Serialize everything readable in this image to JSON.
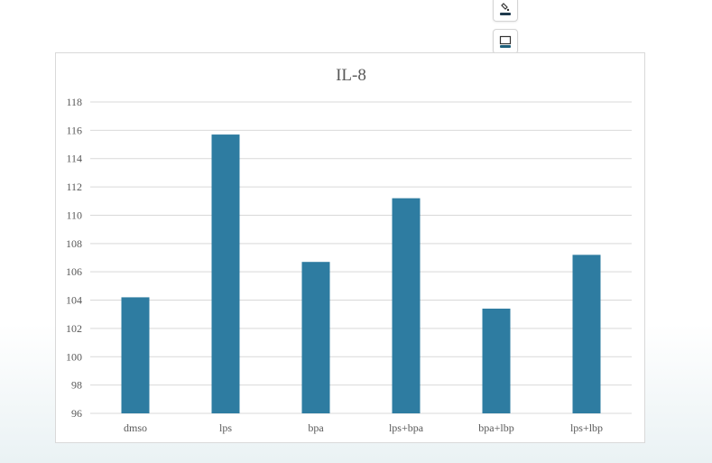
{
  "toolbar": {
    "buttons": [
      {
        "name": "chart-styles-button",
        "icon": "paintbrush-icon"
      },
      {
        "name": "chart-layout-button",
        "icon": "layout-icon"
      },
      {
        "name": "chart-elements-button",
        "icon": "magic-wand-icon"
      },
      {
        "name": "more-options-button",
        "icon": "ellipsis-icon",
        "label": "···"
      }
    ]
  },
  "chart_data": {
    "type": "bar",
    "title": "IL-8",
    "xlabel": "",
    "ylabel": "",
    "categories": [
      "dmso",
      "lps",
      "bpa",
      "lps+bpa",
      "bpa+lbp",
      "lps+lbp"
    ],
    "values": [
      104.2,
      115.7,
      106.7,
      111.2,
      103.4,
      107.2
    ],
    "ylim": [
      96,
      118
    ],
    "yticks": [
      96,
      98,
      100,
      102,
      104,
      106,
      108,
      110,
      112,
      114,
      116,
      118
    ],
    "grid": true,
    "bar_color": "#2e7ca1",
    "grid_color": "#d9d9d9",
    "text_color": "#595959"
  }
}
